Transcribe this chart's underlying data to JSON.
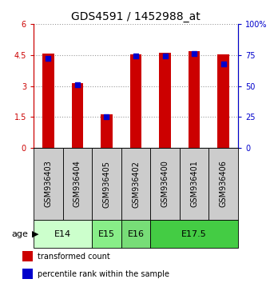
{
  "title": "GDS4591 / 1452988_at",
  "samples": [
    "GSM936403",
    "GSM936404",
    "GSM936405",
    "GSM936402",
    "GSM936400",
    "GSM936401",
    "GSM936406"
  ],
  "transformed_count": [
    4.55,
    3.15,
    1.62,
    4.53,
    4.6,
    4.67,
    4.53
  ],
  "percentile_rank": [
    72,
    51,
    25,
    74,
    74,
    76,
    68
  ],
  "left_ylim": [
    0,
    6
  ],
  "right_ylim": [
    0,
    100
  ],
  "left_yticks": [
    0,
    1.5,
    3,
    4.5,
    6
  ],
  "left_yticklabels": [
    "0",
    "1.5",
    "3",
    "4.5",
    "6"
  ],
  "right_yticks": [
    0,
    25,
    50,
    75,
    100
  ],
  "right_yticklabels": [
    "0",
    "25",
    "50",
    "75",
    "100%"
  ],
  "bar_color": "#cc0000",
  "dot_color": "#0000cc",
  "age_groups": [
    {
      "label": "E14",
      "start": 0,
      "end": 2,
      "color": "#ccffcc"
    },
    {
      "label": "E15",
      "start": 2,
      "end": 3,
      "color": "#88ee88"
    },
    {
      "label": "E16",
      "start": 3,
      "end": 4,
      "color": "#77dd77"
    },
    {
      "label": "E17.5",
      "start": 4,
      "end": 7,
      "color": "#44cc44"
    }
  ],
  "sample_bg_color": "#cccccc",
  "bar_width": 0.4,
  "dot_size": 22,
  "left_axis_color": "#cc0000",
  "right_axis_color": "#0000cc",
  "grid_linestyle": ":",
  "grid_linewidth": 0.8,
  "title_fontsize": 10,
  "tick_fontsize": 7,
  "sample_fontsize": 7,
  "age_fontsize": 8,
  "legend_fontsize": 7
}
